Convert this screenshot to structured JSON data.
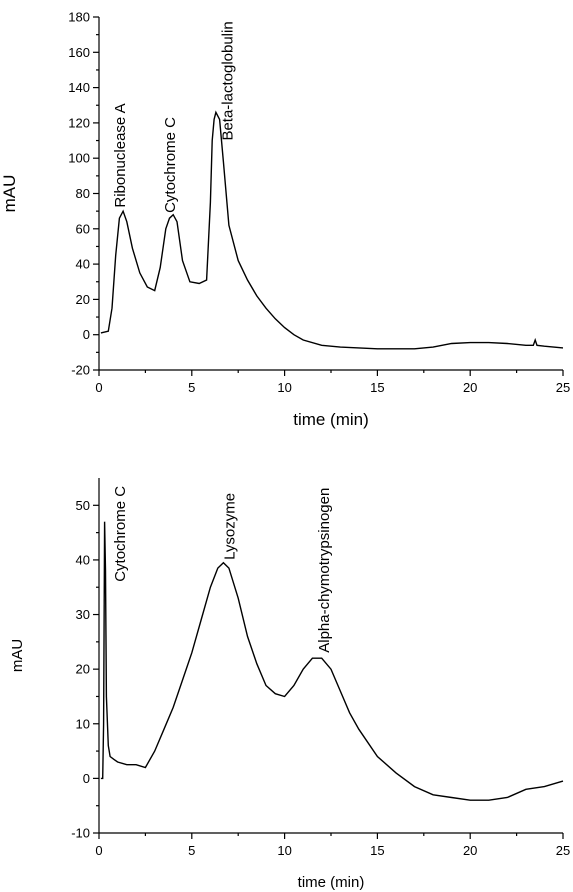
{
  "chart_data": [
    {
      "type": "line",
      "xlabel": "time (min)",
      "ylabel": "mAU",
      "xlim": [
        0,
        25
      ],
      "ylim": [
        -20,
        180
      ],
      "x_ticks": [
        0,
        5,
        10,
        15,
        20,
        25
      ],
      "y_ticks": [
        -20,
        0,
        20,
        40,
        60,
        80,
        100,
        120,
        140,
        160,
        180
      ],
      "annotations": [
        {
          "text": "Ribonuclease A",
          "x": 1.4,
          "y": 72
        },
        {
          "text": "Cytochrome C",
          "x": 4.1,
          "y": 69
        },
        {
          "text": "Beta-lactoglobulin",
          "x": 7.2,
          "y": 110
        }
      ],
      "series": [
        {
          "x": [
            0.1,
            0.5,
            0.7,
            0.9,
            1.1,
            1.3,
            1.5,
            1.8,
            2.2,
            2.6,
            3.0,
            3.3,
            3.6,
            3.8,
            4.0,
            4.2,
            4.5,
            4.9,
            5.4,
            5.8,
            6.0,
            6.1,
            6.2,
            6.3,
            6.5,
            6.7,
            7.0,
            7.5,
            8.0,
            8.5,
            9.0,
            9.5,
            10.0,
            10.5,
            11.0,
            12.0,
            13.0,
            15.0,
            17.0,
            18.0,
            19.0,
            20.0,
            21.0,
            22.0,
            23.0,
            23.4,
            23.5,
            23.6,
            24.0,
            24.5,
            25.0
          ],
          "y": [
            1,
            2,
            15,
            45,
            66,
            70,
            64,
            49,
            35,
            27,
            25,
            38,
            60,
            66,
            68,
            64,
            42,
            30,
            29,
            31,
            75,
            110,
            122,
            126,
            122,
            98,
            62,
            42,
            31,
            22,
            15,
            9,
            4,
            0,
            -3,
            -6,
            -7,
            -8,
            -8,
            -7,
            -5,
            -4.5,
            -4.5,
            -5,
            -6,
            -6,
            -3,
            -6,
            -6.5,
            -7,
            -7.5
          ]
        }
      ]
    },
    {
      "type": "line",
      "xlabel": "time (min)",
      "ylabel": "mAU",
      "xlim": [
        0,
        25
      ],
      "ylim": [
        -10,
        55
      ],
      "x_ticks": [
        0,
        5,
        10,
        15,
        20,
        25
      ],
      "y_ticks": [
        -10,
        0,
        10,
        20,
        30,
        40,
        50
      ],
      "annotations": [
        {
          "text": "Cytochrome C",
          "x": 1.4,
          "y": 36
        },
        {
          "text": "Lysozyme",
          "x": 7.3,
          "y": 40
        },
        {
          "text": "Alpha-chymotrypsinogen",
          "x": 12.4,
          "y": 23
        }
      ],
      "series": [
        {
          "x": [
            0.1,
            0.2,
            0.25,
            0.3,
            0.35,
            0.4,
            0.5,
            0.6,
            0.8,
            1.0,
            1.5,
            2.0,
            2.5,
            3.0,
            3.5,
            4.0,
            4.5,
            5.0,
            5.5,
            6.0,
            6.4,
            6.7,
            7.0,
            7.5,
            8.0,
            8.5,
            9.0,
            9.5,
            10.0,
            10.5,
            11.0,
            11.5,
            12.0,
            12.5,
            13.0,
            13.5,
            14.0,
            15.0,
            16.0,
            17.0,
            18.0,
            19.0,
            20.0,
            21.0,
            22.0,
            23.0,
            24.0,
            25.0
          ],
          "y": [
            0,
            0,
            10,
            47,
            38,
            15,
            6,
            4,
            3.5,
            3,
            2.5,
            2.5,
            2,
            5,
            9,
            13,
            18,
            23,
            29,
            35,
            38.5,
            39.5,
            38.5,
            33,
            26,
            21,
            17,
            15.5,
            15,
            17,
            20,
            22,
            22,
            20,
            16,
            12,
            9,
            4,
            1,
            -1.5,
            -3,
            -3.5,
            -4,
            -4,
            -3.5,
            -2,
            -1.5,
            -0.5
          ]
        }
      ]
    }
  ]
}
